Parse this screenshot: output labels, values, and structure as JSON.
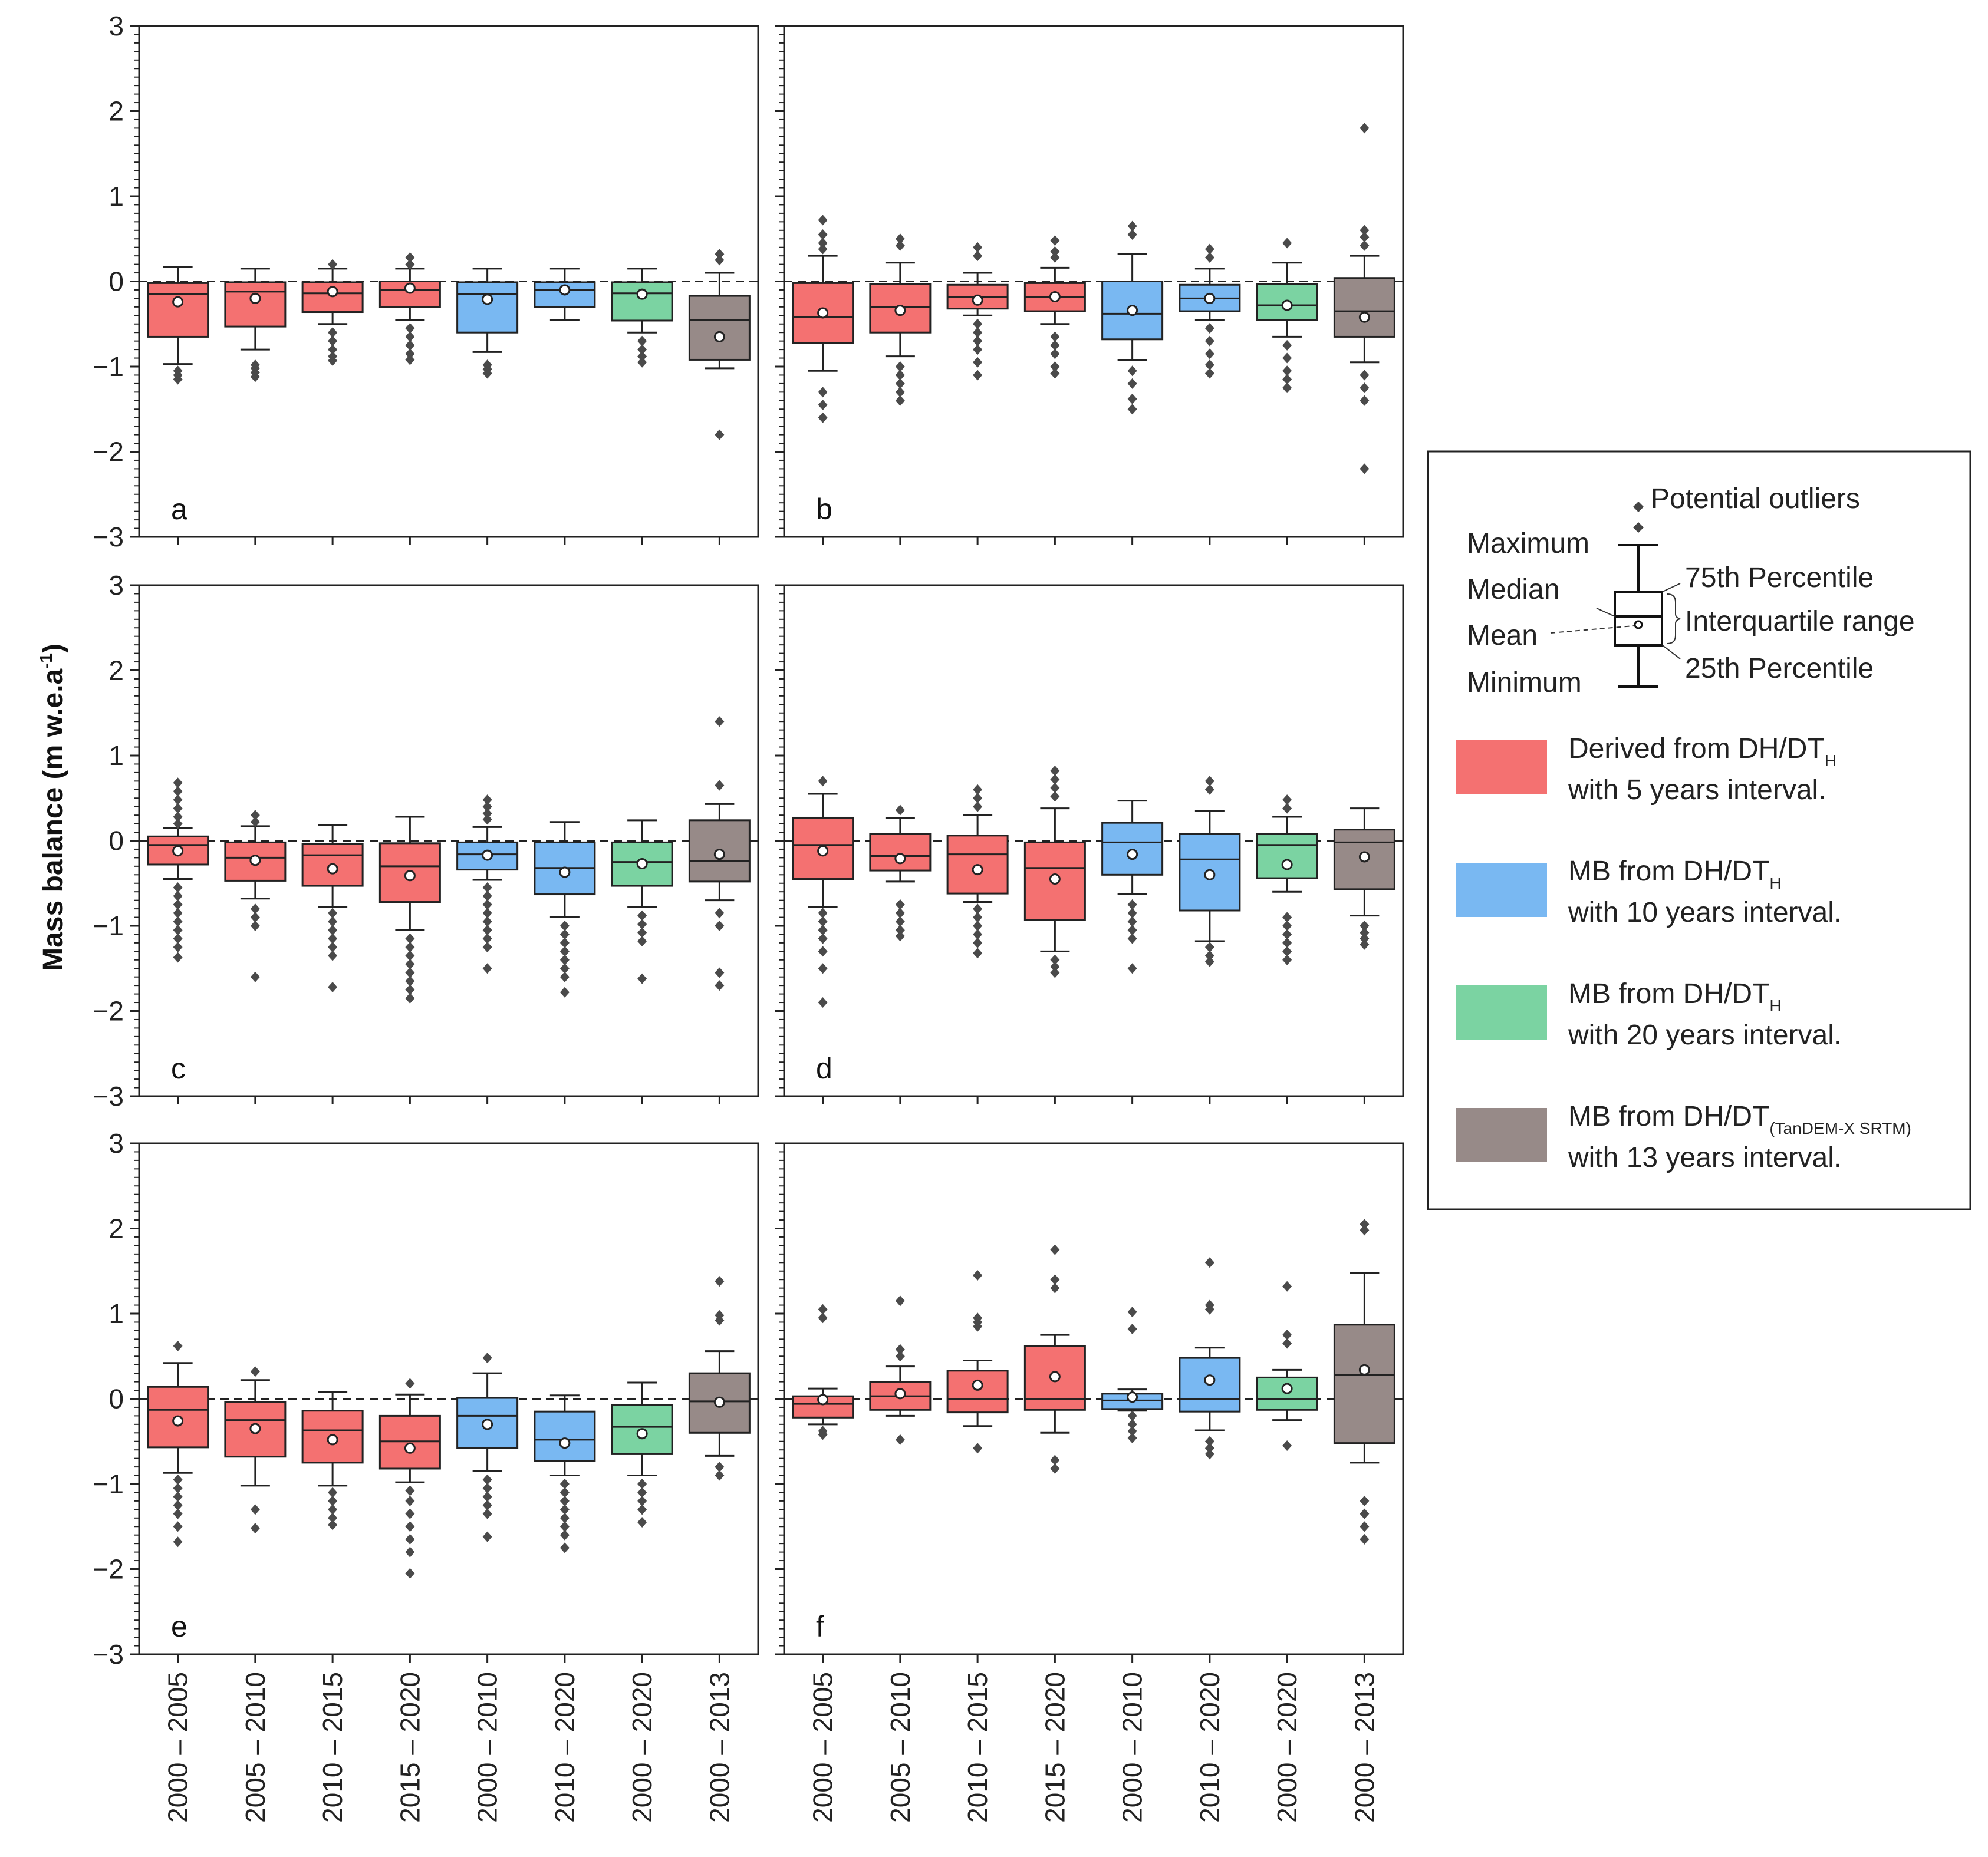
{
  "chart_data": {
    "type": "box",
    "ylabel_text": "Mass balance (m w.e.a",
    "ylabel_sup": "-1",
    "ylabel_close": ")",
    "ylim": [
      -3,
      3
    ],
    "yticks": [
      3,
      2,
      1,
      0,
      -1,
      -2,
      -3
    ],
    "ytick_labels": [
      "3",
      "2",
      "1",
      "0",
      "−1",
      "−2",
      "−3"
    ],
    "reference_line": 0,
    "categories": [
      "2000 – 2005",
      "2005 – 2010",
      "2010 – 2015",
      "2015 – 2020",
      "2000 – 2010",
      "2010 – 2020",
      "2000 – 2020",
      "2000 – 2013"
    ],
    "category_groups": [
      "g5",
      "g5",
      "g5",
      "g5",
      "g10",
      "g10",
      "g20",
      "gts"
    ],
    "colors": {
      "g5": "#f47171",
      "g10": "#79b8f2",
      "g20": "#7bd3a2",
      "gts": "#978a88"
    },
    "panels": [
      {
        "letter": "a",
        "boxes": [
          {
            "whislo": -0.97,
            "q1": -0.65,
            "med": -0.15,
            "q3": -0.02,
            "whishi": 0.17,
            "mean": -0.24,
            "fliers": [
              -1.05,
              -1.1,
              -1.15
            ]
          },
          {
            "whislo": -0.8,
            "q1": -0.53,
            "med": -0.12,
            "q3": -0.01,
            "whishi": 0.15,
            "mean": -0.2,
            "fliers": [
              -0.98,
              -1.02,
              -1.07,
              -1.12
            ]
          },
          {
            "whislo": -0.5,
            "q1": -0.36,
            "med": -0.14,
            "q3": -0.01,
            "whishi": 0.15,
            "mean": -0.12,
            "fliers": [
              0.2,
              -0.6,
              -0.7,
              -0.8,
              -0.88,
              -0.93
            ]
          },
          {
            "whislo": -0.45,
            "q1": -0.3,
            "med": -0.1,
            "q3": 0.0,
            "whishi": 0.15,
            "mean": -0.08,
            "fliers": [
              0.2,
              0.28,
              -0.55,
              -0.65,
              -0.75,
              -0.85,
              -0.92
            ]
          },
          {
            "whislo": -0.83,
            "q1": -0.6,
            "med": -0.15,
            "q3": -0.01,
            "whishi": 0.15,
            "mean": -0.21,
            "fliers": [
              -0.98,
              -1.03,
              -1.08
            ]
          },
          {
            "whislo": -0.45,
            "q1": -0.3,
            "med": -0.1,
            "q3": -0.01,
            "whishi": 0.15,
            "mean": -0.1,
            "fliers": []
          },
          {
            "whislo": -0.6,
            "q1": -0.46,
            "med": -0.14,
            "q3": -0.01,
            "whishi": 0.15,
            "mean": -0.15,
            "fliers": [
              -0.7,
              -0.8,
              -0.88,
              -0.95
            ]
          },
          {
            "whislo": -1.02,
            "q1": -0.92,
            "med": -0.45,
            "q3": -0.17,
            "whishi": 0.1,
            "mean": -0.65,
            "fliers": [
              0.32,
              0.25,
              -1.8
            ]
          }
        ]
      },
      {
        "letter": "b",
        "boxes": [
          {
            "whislo": -1.05,
            "q1": -0.72,
            "med": -0.42,
            "q3": -0.02,
            "whishi": 0.3,
            "mean": -0.37,
            "fliers": [
              0.72,
              0.55,
              0.45,
              0.38,
              -1.3,
              -1.45,
              -1.6
            ]
          },
          {
            "whislo": -0.88,
            "q1": -0.6,
            "med": -0.3,
            "q3": -0.03,
            "whishi": 0.22,
            "mean": -0.34,
            "fliers": [
              0.5,
              0.42,
              -1.0,
              -1.1,
              -1.2,
              -1.3,
              -1.4
            ]
          },
          {
            "whislo": -0.4,
            "q1": -0.32,
            "med": -0.18,
            "q3": -0.04,
            "whishi": 0.1,
            "mean": -0.22,
            "fliers": [
              0.4,
              0.3,
              -0.5,
              -0.6,
              -0.7,
              -0.8,
              -0.95,
              -1.1
            ]
          },
          {
            "whislo": -0.5,
            "q1": -0.35,
            "med": -0.18,
            "q3": -0.02,
            "whishi": 0.16,
            "mean": -0.18,
            "fliers": [
              0.48,
              0.35,
              0.28,
              -0.65,
              -0.75,
              -0.85,
              -1.0,
              -1.08
            ]
          },
          {
            "whislo": -0.92,
            "q1": -0.68,
            "med": -0.38,
            "q3": 0.0,
            "whishi": 0.32,
            "mean": -0.34,
            "fliers": [
              0.65,
              0.55,
              -1.05,
              -1.2,
              -1.38,
              -1.5
            ]
          },
          {
            "whislo": -0.45,
            "q1": -0.35,
            "med": -0.2,
            "q3": -0.04,
            "whishi": 0.15,
            "mean": -0.2,
            "fliers": [
              0.38,
              0.28,
              -0.55,
              -0.7,
              -0.85,
              -0.98,
              -1.08
            ]
          },
          {
            "whislo": -0.65,
            "q1": -0.45,
            "med": -0.28,
            "q3": -0.03,
            "whishi": 0.22,
            "mean": -0.28,
            "fliers": [
              0.45,
              -0.75,
              -0.9,
              -1.05,
              -1.15,
              -1.25
            ]
          },
          {
            "whislo": -0.95,
            "q1": -0.65,
            "med": -0.35,
            "q3": 0.04,
            "whishi": 0.3,
            "mean": -0.42,
            "fliers": [
              1.8,
              0.6,
              0.52,
              0.42,
              -1.1,
              -1.25,
              -1.4,
              -2.2
            ]
          }
        ]
      },
      {
        "letter": "c",
        "boxes": [
          {
            "whislo": -0.45,
            "q1": -0.28,
            "med": -0.05,
            "q3": 0.05,
            "whishi": 0.15,
            "mean": -0.12,
            "fliers": [
              0.68,
              0.58,
              0.48,
              0.38,
              0.28,
              0.2,
              -0.55,
              -0.65,
              -0.75,
              -0.85,
              -0.95,
              -1.05,
              -1.15,
              -1.25,
              -1.37
            ]
          },
          {
            "whislo": -0.68,
            "q1": -0.47,
            "med": -0.2,
            "q3": -0.02,
            "whishi": 0.17,
            "mean": -0.23,
            "fliers": [
              0.3,
              0.22,
              -0.8,
              -0.9,
              -1.0,
              -1.6
            ]
          },
          {
            "whislo": -0.78,
            "q1": -0.53,
            "med": -0.17,
            "q3": -0.04,
            "whishi": 0.18,
            "mean": -0.33,
            "fliers": [
              -0.85,
              -0.95,
              -1.05,
              -1.15,
              -1.25,
              -1.35,
              -1.72
            ]
          },
          {
            "whislo": -1.05,
            "q1": -0.72,
            "med": -0.3,
            "q3": -0.03,
            "whishi": 0.28,
            "mean": -0.41,
            "fliers": [
              -1.15,
              -1.25,
              -1.35,
              -1.45,
              -1.55,
              -1.65,
              -1.75,
              -1.85
            ]
          },
          {
            "whislo": -0.46,
            "q1": -0.34,
            "med": -0.16,
            "q3": -0.02,
            "whishi": 0.16,
            "mean": -0.17,
            "fliers": [
              0.48,
              0.4,
              0.32,
              0.25,
              -0.55,
              -0.65,
              -0.75,
              -0.85,
              -0.95,
              -1.05,
              -1.15,
              -1.25,
              -1.5
            ]
          },
          {
            "whislo": -0.9,
            "q1": -0.63,
            "med": -0.32,
            "q3": -0.02,
            "whishi": 0.22,
            "mean": -0.37,
            "fliers": [
              -1.0,
              -1.1,
              -1.2,
              -1.3,
              -1.4,
              -1.5,
              -1.6,
              -1.78
            ]
          },
          {
            "whislo": -0.78,
            "q1": -0.53,
            "med": -0.25,
            "q3": -0.02,
            "whishi": 0.24,
            "mean": -0.27,
            "fliers": [
              -0.88,
              -0.98,
              -1.08,
              -1.18,
              -1.62
            ]
          },
          {
            "whislo": -0.7,
            "q1": -0.48,
            "med": -0.24,
            "q3": 0.24,
            "whishi": 0.43,
            "mean": -0.16,
            "fliers": [
              1.4,
              0.65,
              -0.85,
              -1.0,
              -1.55,
              -1.7
            ]
          }
        ]
      },
      {
        "letter": "d",
        "boxes": [
          {
            "whislo": -0.78,
            "q1": -0.45,
            "med": -0.05,
            "q3": 0.27,
            "whishi": 0.55,
            "mean": -0.12,
            "fliers": [
              0.7,
              -0.85,
              -0.95,
              -1.05,
              -1.15,
              -1.3,
              -1.5,
              -1.9
            ]
          },
          {
            "whislo": -0.48,
            "q1": -0.35,
            "med": -0.18,
            "q3": 0.08,
            "whishi": 0.27,
            "mean": -0.21,
            "fliers": [
              0.36,
              -0.75,
              -0.85,
              -0.95,
              -1.05,
              -1.12
            ]
          },
          {
            "whislo": -0.72,
            "q1": -0.62,
            "med": -0.16,
            "q3": 0.06,
            "whishi": 0.3,
            "mean": -0.34,
            "fliers": [
              0.6,
              0.5,
              0.4,
              -0.8,
              -0.9,
              -1.0,
              -1.1,
              -1.2,
              -1.32
            ]
          },
          {
            "whislo": -1.3,
            "q1": -0.93,
            "med": -0.32,
            "q3": -0.02,
            "whishi": 0.38,
            "mean": -0.45,
            "fliers": [
              0.82,
              0.72,
              0.62,
              0.52,
              -1.4,
              -1.48,
              -1.55
            ]
          },
          {
            "whislo": -0.63,
            "q1": -0.4,
            "med": -0.02,
            "q3": 0.21,
            "whishi": 0.47,
            "mean": -0.16,
            "fliers": [
              -0.75,
              -0.85,
              -0.95,
              -1.05,
              -1.15,
              -1.5
            ]
          },
          {
            "whislo": -1.18,
            "q1": -0.82,
            "med": -0.22,
            "q3": 0.08,
            "whishi": 0.35,
            "mean": -0.4,
            "fliers": [
              0.7,
              0.6,
              -1.25,
              -1.35,
              -1.42
            ]
          },
          {
            "whislo": -0.6,
            "q1": -0.44,
            "med": -0.05,
            "q3": 0.08,
            "whishi": 0.28,
            "mean": -0.28,
            "fliers": [
              0.48,
              0.38,
              -0.9,
              -1.0,
              -1.1,
              -1.2,
              -1.3,
              -1.4
            ]
          },
          {
            "whislo": -0.88,
            "q1": -0.57,
            "med": -0.02,
            "q3": 0.13,
            "whishi": 0.38,
            "mean": -0.19,
            "fliers": [
              -1.0,
              -1.08,
              -1.15,
              -1.22
            ]
          }
        ]
      },
      {
        "letter": "e",
        "boxes": [
          {
            "whislo": -0.87,
            "q1": -0.57,
            "med": -0.13,
            "q3": 0.14,
            "whishi": 0.42,
            "mean": -0.26,
            "fliers": [
              0.62,
              -0.95,
              -1.05,
              -1.15,
              -1.25,
              -1.35,
              -1.5,
              -1.68
            ]
          },
          {
            "whislo": -1.02,
            "q1": -0.68,
            "med": -0.25,
            "q3": -0.04,
            "whishi": 0.22,
            "mean": -0.35,
            "fliers": [
              0.32,
              -1.3,
              -1.52
            ]
          },
          {
            "whislo": -1.02,
            "q1": -0.75,
            "med": -0.37,
            "q3": -0.14,
            "whishi": 0.08,
            "mean": -0.48,
            "fliers": [
              -1.1,
              -1.2,
              -1.3,
              -1.4,
              -1.48
            ]
          },
          {
            "whislo": -0.98,
            "q1": -0.82,
            "med": -0.5,
            "q3": -0.2,
            "whishi": 0.05,
            "mean": -0.58,
            "fliers": [
              0.18,
              -1.08,
              -1.2,
              -1.35,
              -1.5,
              -1.65,
              -1.8,
              -2.05
            ]
          },
          {
            "whislo": -0.85,
            "q1": -0.58,
            "med": -0.2,
            "q3": 0.01,
            "whishi": 0.3,
            "mean": -0.3,
            "fliers": [
              0.48,
              -0.95,
              -1.05,
              -1.15,
              -1.25,
              -1.35,
              -1.62
            ]
          },
          {
            "whislo": -0.9,
            "q1": -0.73,
            "med": -0.48,
            "q3": -0.15,
            "whishi": 0.04,
            "mean": -0.52,
            "fliers": [
              -1.0,
              -1.1,
              -1.2,
              -1.3,
              -1.4,
              -1.5,
              -1.6,
              -1.75
            ]
          },
          {
            "whislo": -0.9,
            "q1": -0.65,
            "med": -0.33,
            "q3": -0.07,
            "whishi": 0.19,
            "mean": -0.41,
            "fliers": [
              -1.0,
              -1.1,
              -1.2,
              -1.3,
              -1.45
            ]
          },
          {
            "whislo": -0.67,
            "q1": -0.4,
            "med": -0.03,
            "q3": 0.3,
            "whishi": 0.56,
            "mean": -0.04,
            "fliers": [
              1.38,
              0.98,
              0.92,
              -0.8,
              -0.9
            ]
          }
        ]
      },
      {
        "letter": "f",
        "boxes": [
          {
            "whislo": -0.3,
            "q1": -0.22,
            "med": -0.06,
            "q3": 0.03,
            "whishi": 0.12,
            "mean": -0.01,
            "fliers": [
              1.05,
              0.95,
              -0.38,
              -0.42
            ]
          },
          {
            "whislo": -0.2,
            "q1": -0.13,
            "med": 0.03,
            "q3": 0.2,
            "whishi": 0.38,
            "mean": 0.06,
            "fliers": [
              1.15,
              0.58,
              0.5,
              -0.48
            ]
          },
          {
            "whislo": -0.32,
            "q1": -0.16,
            "med": 0.0,
            "q3": 0.33,
            "whishi": 0.45,
            "mean": 0.16,
            "fliers": [
              1.45,
              0.95,
              0.9,
              0.85,
              -0.58
            ]
          },
          {
            "whislo": -0.4,
            "q1": -0.13,
            "med": 0.0,
            "q3": 0.62,
            "whishi": 0.75,
            "mean": 0.26,
            "fliers": [
              1.75,
              1.4,
              1.3,
              -0.72,
              -0.82
            ]
          },
          {
            "whislo": -0.14,
            "q1": -0.12,
            "med": -0.02,
            "q3": 0.06,
            "whishi": 0.11,
            "mean": 0.02,
            "fliers": [
              1.02,
              0.82,
              -0.2,
              -0.3,
              -0.38,
              -0.46
            ]
          },
          {
            "whislo": -0.37,
            "q1": -0.15,
            "med": 0.0,
            "q3": 0.48,
            "whishi": 0.6,
            "mean": 0.22,
            "fliers": [
              1.6,
              1.1,
              1.05,
              -0.5,
              -0.58,
              -0.65
            ]
          },
          {
            "whislo": -0.25,
            "q1": -0.13,
            "med": 0.0,
            "q3": 0.25,
            "whishi": 0.34,
            "mean": 0.12,
            "fliers": [
              1.32,
              0.75,
              0.65,
              -0.55
            ]
          },
          {
            "whislo": -0.75,
            "q1": -0.52,
            "med": 0.28,
            "q3": 0.87,
            "whishi": 1.48,
            "mean": 0.34,
            "fliers": [
              2.05,
              1.98,
              -1.2,
              -1.35,
              -1.5,
              -1.65
            ]
          }
        ]
      }
    ],
    "legend": {
      "placement": "right",
      "outliers_label": "Potential outliers",
      "maximum_label": "Maximum",
      "median_label": "Median",
      "mean_label": "Mean",
      "minimum_label": "Minimum",
      "p75_label": "75th Percentile",
      "iqr_label": "Interquartile range",
      "p25_label": "25th Percentile",
      "entries": [
        {
          "group": "g5",
          "line1": "Derived from DH/DT",
          "sub": "H",
          "line2": "with 5 years interval."
        },
        {
          "group": "g10",
          "line1": "MB from DH/DT",
          "sub": "H",
          "line2": "with 10 years interval."
        },
        {
          "group": "g20",
          "line1": "MB from DH/DT",
          "sub": "H",
          "line2": "with 20 years interval."
        },
        {
          "group": "gts",
          "line1": "MB from DH/DT",
          "sub": "(TanDEM-X  SRTM)",
          "line2": "with 13 years interval."
        }
      ]
    }
  }
}
